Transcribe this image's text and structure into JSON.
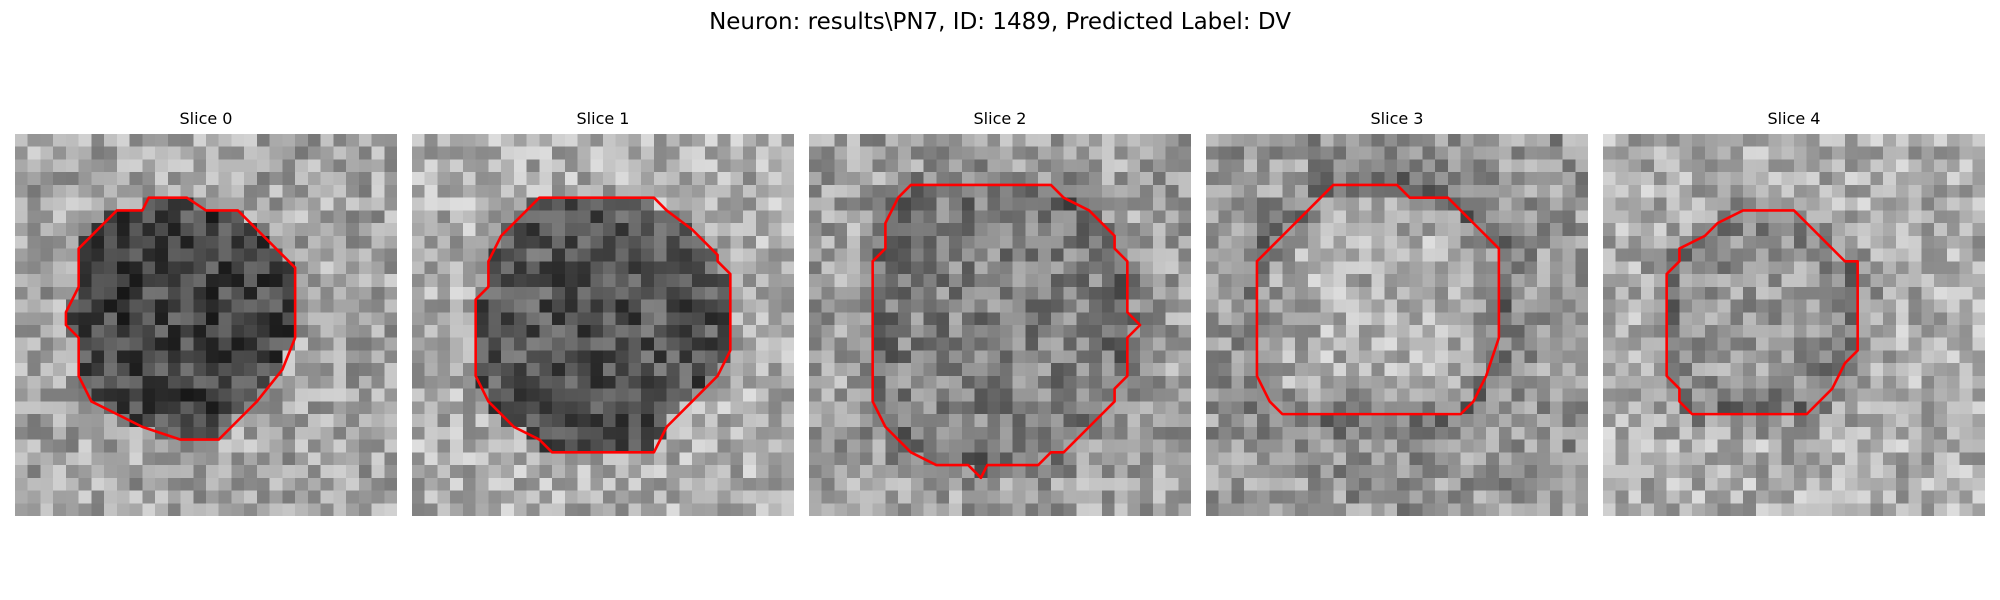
{
  "figure": {
    "title": "Neuron: results\\PN7, ID: 1489, Predicted Label: DV"
  },
  "colors": {
    "contour": "#ff0000",
    "background": "#ffffff",
    "colormap": "grayscale"
  },
  "panels": [
    {
      "title": "Slice 0",
      "contour": [
        [
          10.5,
          5
        ],
        [
          13.5,
          5
        ],
        [
          15,
          6
        ],
        [
          17.5,
          6
        ],
        [
          19,
          7.5
        ],
        [
          21,
          9.5
        ],
        [
          22,
          10.5
        ],
        [
          22,
          16
        ],
        [
          21,
          18.5
        ],
        [
          19,
          21
        ],
        [
          17,
          23
        ],
        [
          16,
          24
        ],
        [
          13,
          24
        ],
        [
          10,
          23
        ],
        [
          8,
          22
        ],
        [
          6,
          21
        ],
        [
          5,
          19
        ],
        [
          5,
          16
        ],
        [
          4,
          15
        ],
        [
          4,
          14
        ],
        [
          5,
          12
        ],
        [
          5,
          9
        ],
        [
          7,
          7
        ],
        [
          8,
          6
        ],
        [
          10,
          6
        ]
      ]
    },
    {
      "title": "Slice 1",
      "contour": [
        [
          10,
          5
        ],
        [
          19,
          5
        ],
        [
          20,
          6
        ],
        [
          22,
          7.5
        ],
        [
          24,
          9.5
        ],
        [
          24,
          10
        ],
        [
          25,
          11
        ],
        [
          25,
          17
        ],
        [
          24,
          19
        ],
        [
          22,
          21
        ],
        [
          20,
          23
        ],
        [
          19,
          25
        ],
        [
          11,
          25
        ],
        [
          10,
          24
        ],
        [
          8,
          23
        ],
        [
          6,
          21
        ],
        [
          5,
          19
        ],
        [
          5,
          13
        ],
        [
          6,
          12
        ],
        [
          6,
          10
        ],
        [
          7,
          8
        ],
        [
          9,
          6
        ]
      ]
    },
    {
      "title": "Slice 2",
      "contour": [
        [
          8,
          4
        ],
        [
          19,
          4
        ],
        [
          20,
          5
        ],
        [
          22,
          6
        ],
        [
          24,
          8
        ],
        [
          24,
          9
        ],
        [
          25,
          10
        ],
        [
          25,
          14
        ],
        [
          26,
          15
        ],
        [
          25,
          16
        ],
        [
          25,
          19
        ],
        [
          24,
          20
        ],
        [
          24,
          21
        ],
        [
          22,
          23
        ],
        [
          20,
          25
        ],
        [
          19,
          25
        ],
        [
          18,
          26
        ],
        [
          14,
          26
        ],
        [
          13.5,
          27
        ],
        [
          12.5,
          26
        ],
        [
          10,
          26
        ],
        [
          8,
          25
        ],
        [
          6,
          23
        ],
        [
          5,
          21
        ],
        [
          5,
          18
        ],
        [
          5,
          15
        ],
        [
          5,
          10
        ],
        [
          6,
          9
        ],
        [
          6,
          7
        ],
        [
          7,
          5
        ]
      ]
    },
    {
      "title": "Slice 3",
      "contour": [
        [
          10,
          4
        ],
        [
          15,
          4
        ],
        [
          16,
          5
        ],
        [
          19,
          5
        ],
        [
          21,
          7
        ],
        [
          23,
          9
        ],
        [
          23,
          16
        ],
        [
          22,
          19
        ],
        [
          21,
          21
        ],
        [
          20,
          22
        ],
        [
          6,
          22
        ],
        [
          5,
          21
        ],
        [
          4,
          19
        ],
        [
          4,
          10
        ],
        [
          6,
          8
        ],
        [
          8,
          6
        ],
        [
          9,
          5
        ]
      ]
    },
    {
      "title": "Slice 4",
      "contour": [
        [
          11,
          6
        ],
        [
          15,
          6
        ],
        [
          16,
          7
        ],
        [
          19,
          10
        ],
        [
          20,
          10
        ],
        [
          20,
          17
        ],
        [
          19,
          18
        ],
        [
          18,
          20
        ],
        [
          16,
          22
        ],
        [
          7,
          22
        ],
        [
          6,
          21
        ],
        [
          6,
          20
        ],
        [
          5,
          19
        ],
        [
          5,
          11
        ],
        [
          6,
          10
        ],
        [
          6,
          9
        ],
        [
          8,
          8
        ],
        [
          9,
          7
        ]
      ]
    }
  ]
}
